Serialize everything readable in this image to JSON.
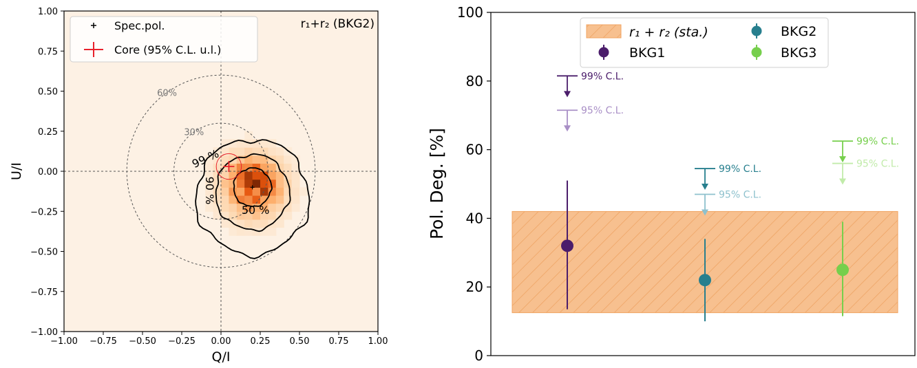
{
  "chart_data": [
    {
      "type": "heatmap",
      "annotation": "r₁+r₂ (BKG2)",
      "xlabel": "Q/I",
      "ylabel": "U/I",
      "xlim": [
        -1.0,
        1.0
      ],
      "ylim": [
        -1.0,
        1.0
      ],
      "xticks": [
        "−1.00",
        "−0.75",
        "−0.50",
        "−0.25",
        "0.00",
        "0.25",
        "0.50",
        "0.75",
        "1.00"
      ],
      "yticks": [
        "1.00",
        "0.75",
        "0.50",
        "0.25",
        "0.00",
        "−0.25",
        "−0.50",
        "−0.75",
        "−1.00"
      ],
      "grid": false,
      "legend_position": "upper-left",
      "legend": [
        {
          "label": "Spec.pol.",
          "marker": "plus",
          "color": "#000000"
        },
        {
          "label": "Core (95% C.L. u.l.)",
          "marker": "plus",
          "color": "#e8212b"
        }
      ],
      "spec_pol_point": {
        "q": 0.2,
        "u": -0.1
      },
      "core_point": {
        "q": 0.05,
        "u": 0.03,
        "radius": 0.08
      },
      "reference_circles": [
        {
          "radius": 0.3,
          "label": "30%"
        },
        {
          "radius": 0.6,
          "label": "60%"
        }
      ],
      "confidence_contours": [
        {
          "label": "50 %",
          "level": 0.5
        },
        {
          "label": "90 %",
          "level": 0.9
        },
        {
          "label": "99 %",
          "level": 0.99
        }
      ],
      "density_peak": {
        "q": 0.2,
        "u": -0.1,
        "sigma": 0.14
      },
      "colormap": [
        "#fdf1e4",
        "#fdd9b4",
        "#fdae6b",
        "#e6550d",
        "#7f2704"
      ]
    },
    {
      "type": "scatter",
      "ylabel": "Pol. Deg. [%]",
      "xlabel": "",
      "ylim": [
        0,
        100
      ],
      "yticks": [
        0,
        20,
        40,
        60,
        80,
        100
      ],
      "legend_position": "upper-center",
      "band": {
        "label": "r₁ + r₂ (sta.)",
        "low": 12.5,
        "high": 42,
        "color": "#f5a65b"
      },
      "series": [
        {
          "name": "BKG1",
          "x": 1,
          "y": 32,
          "err_low": 13.5,
          "err_high": 51,
          "ul99": 81.5,
          "ul95": 71.5,
          "color": "#4b1d6b",
          "light_color": "#a98fc6"
        },
        {
          "name": "BKG2",
          "x": 2,
          "y": 22,
          "err_low": 10,
          "err_high": 34,
          "ul99": 54.5,
          "ul95": 47,
          "color": "#277f8e",
          "light_color": "#8ec1cd"
        },
        {
          "name": "BKG3",
          "x": 3,
          "y": 25,
          "err_low": 11.5,
          "err_high": 39,
          "ul99": 62.5,
          "ul95": 56,
          "color": "#76cf4c",
          "light_color": "#c1ebaa"
        }
      ],
      "ul_labels": {
        "ul99": "99% C.L.",
        "ul95": "95% C.L."
      }
    }
  ]
}
